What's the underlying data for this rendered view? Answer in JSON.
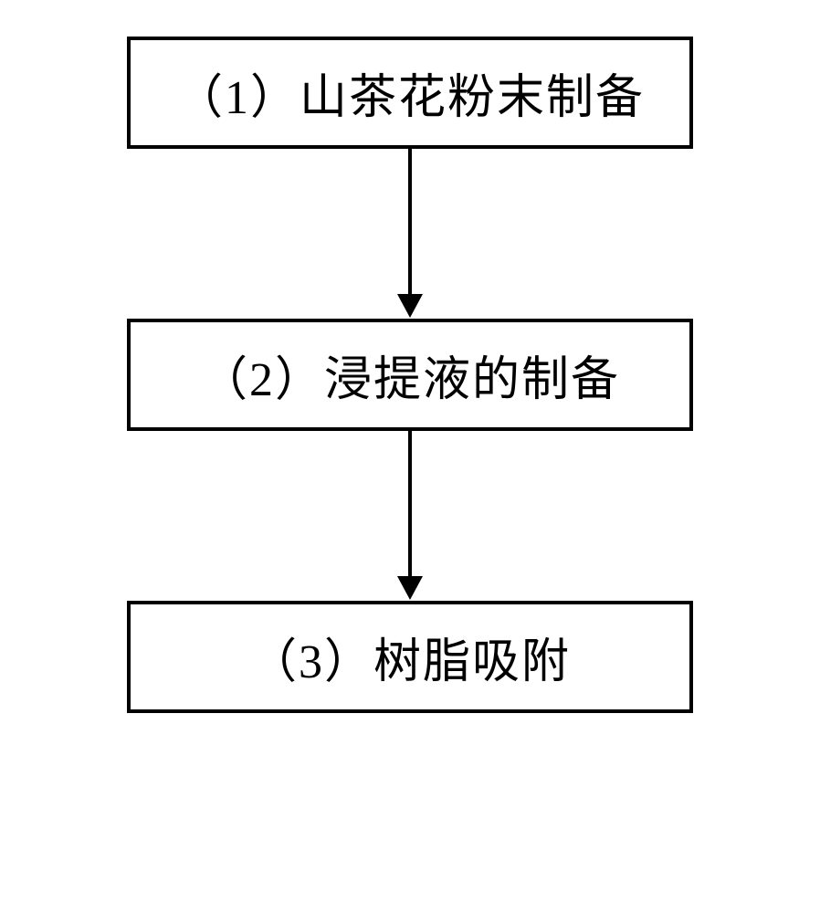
{
  "flowchart": {
    "type": "flowchart",
    "direction": "vertical",
    "background_color": "#ffffff",
    "nodes": [
      {
        "id": "step1",
        "label": "（1）山茶花粉末制备",
        "border_color": "#000000",
        "border_width": 4,
        "text_color": "#000000",
        "font_size": 52,
        "font_family": "SimSun"
      },
      {
        "id": "step2",
        "label": "（2）浸提液的制备",
        "border_color": "#000000",
        "border_width": 4,
        "text_color": "#000000",
        "font_size": 52,
        "font_family": "SimSun"
      },
      {
        "id": "step3",
        "label": "（3）树脂吸附",
        "border_color": "#000000",
        "border_width": 4,
        "text_color": "#000000",
        "font_size": 52,
        "font_family": "SimSun"
      }
    ],
    "edges": [
      {
        "from": "step1",
        "to": "step2",
        "color": "#000000",
        "line_width": 4,
        "arrow_size": 26
      },
      {
        "from": "step2",
        "to": "step3",
        "color": "#000000",
        "line_width": 4,
        "arrow_size": 26
      }
    ]
  }
}
